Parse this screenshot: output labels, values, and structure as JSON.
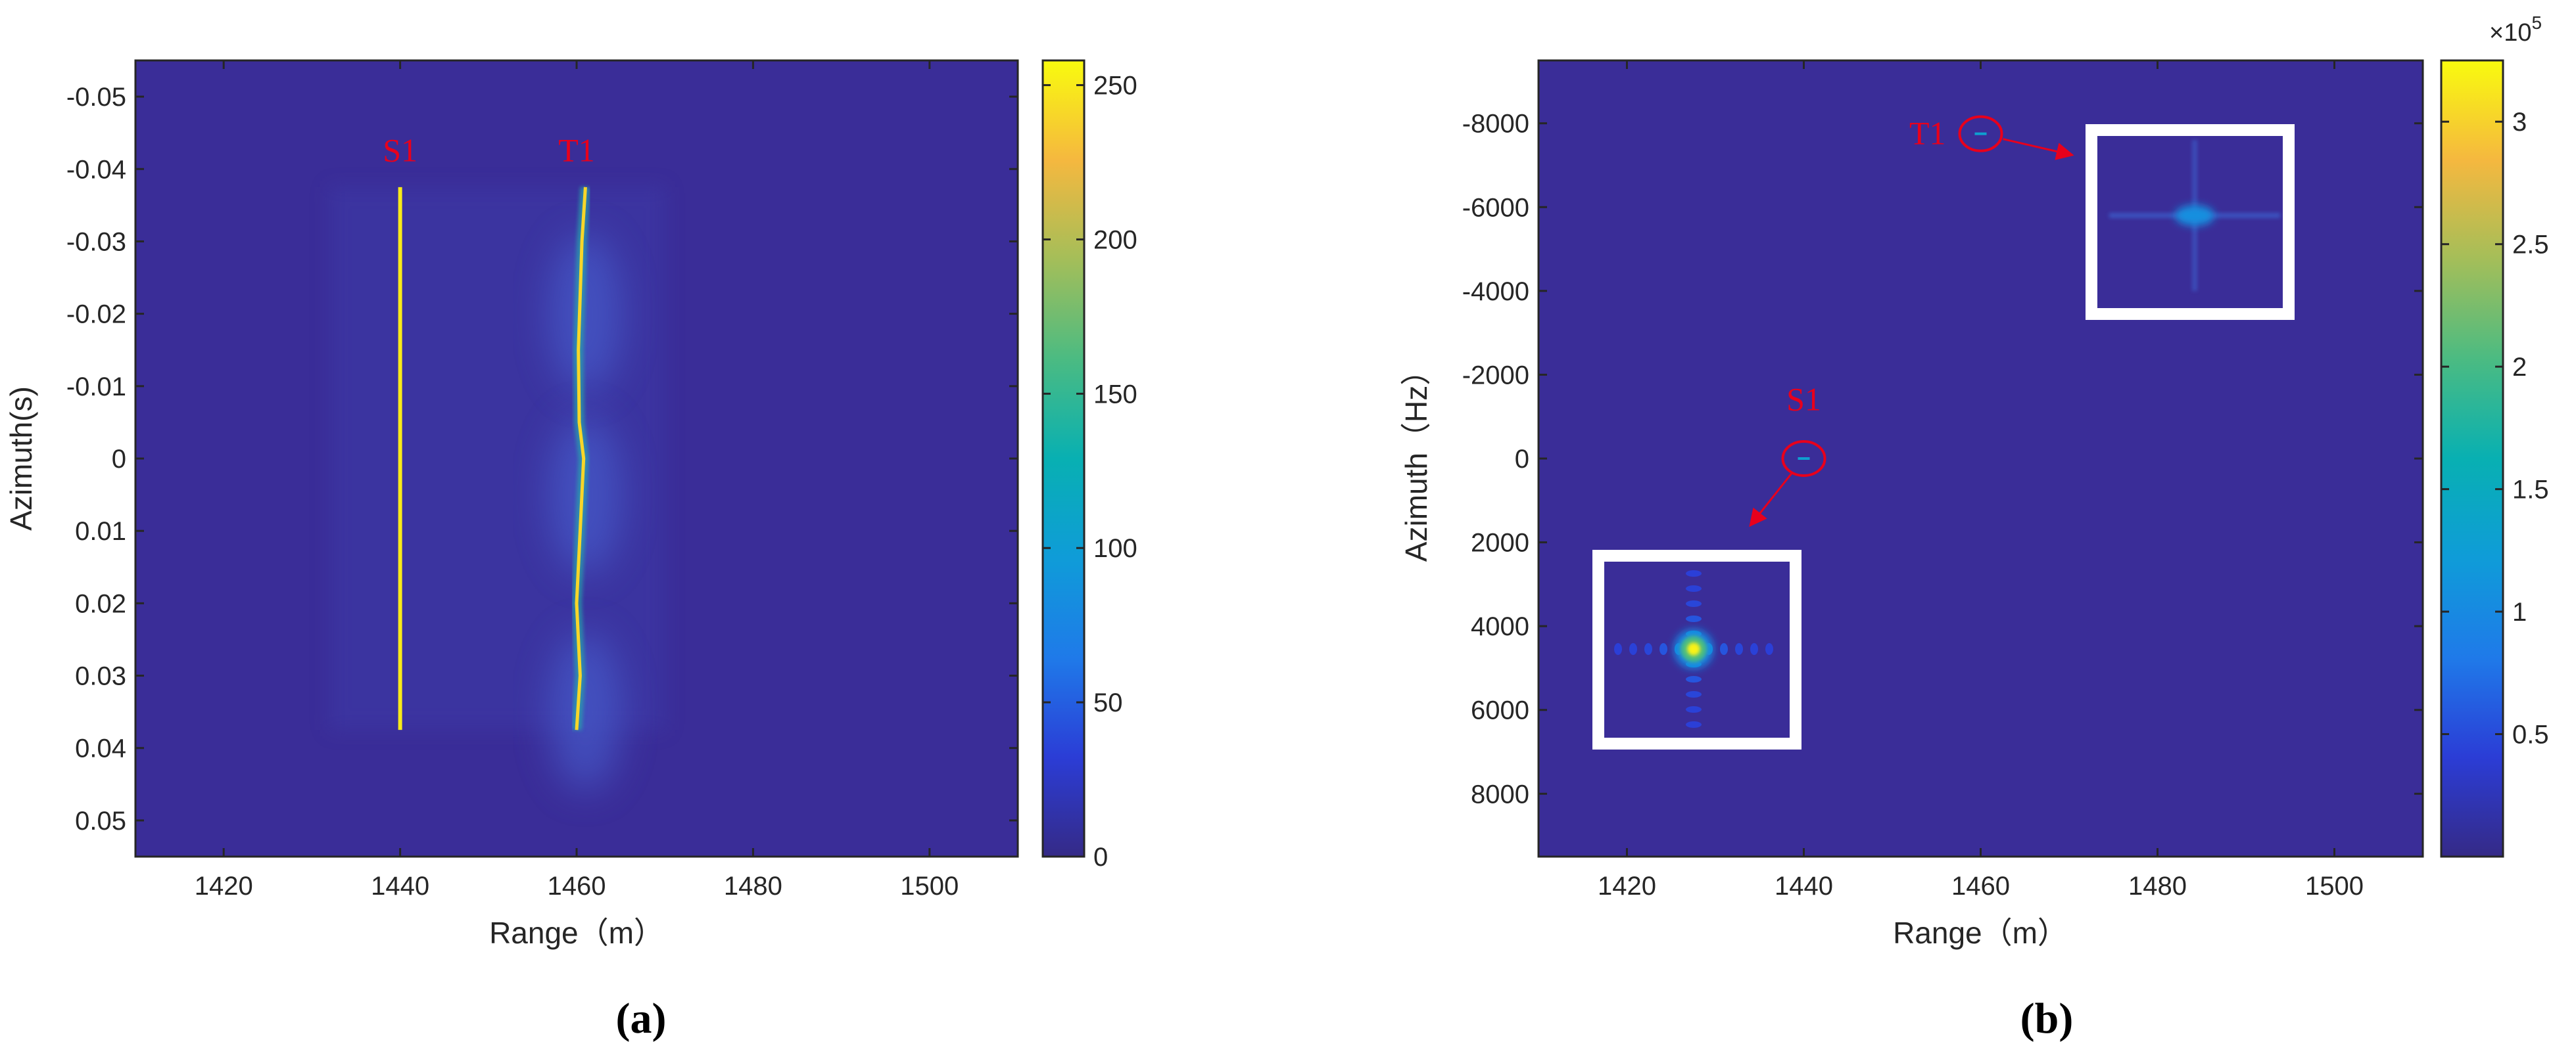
{
  "chart_data": [
    {
      "type": "heatmap",
      "panel_label": "(a)",
      "xlabel": "Range（m）",
      "ylabel": "Azimuth(s)",
      "xlim": [
        1410,
        1510
      ],
      "ylim": [
        -0.055,
        0.055
      ],
      "y_reversed": true,
      "xticks": [
        1420,
        1440,
        1460,
        1480,
        1500
      ],
      "yticks": [
        -0.05,
        -0.04,
        -0.03,
        -0.02,
        -0.01,
        0,
        0.01,
        0.02,
        0.03,
        0.04,
        0.05
      ],
      "ytick_labels": [
        "-0.05",
        "-0.04",
        "-0.03",
        "-0.02",
        "-0.01",
        "0",
        "0.01",
        "0.02",
        "0.03",
        "0.04",
        "0.05"
      ],
      "colormap": "parula",
      "colorbar": {
        "range": [
          0,
          258
        ],
        "ticks": [
          0,
          50,
          100,
          150,
          200,
          250
        ],
        "tick_labels": [
          "0",
          "50",
          "100",
          "150",
          "200",
          "250"
        ]
      },
      "background_value": 20,
      "features": [
        {
          "label": "S1",
          "kind": "vertical_line",
          "x": 1440,
          "y_range": [
            -0.0375,
            0.0375
          ],
          "peak": 250,
          "edge": 130
        },
        {
          "label": "T1",
          "kind": "curved_line",
          "y_range": [
            -0.0375,
            0.0375
          ],
          "path": [
            [
              1461,
              -0.0375
            ],
            [
              1460.6,
              -0.03
            ],
            [
              1460.2,
              -0.015
            ],
            [
              1460.3,
              -0.005
            ],
            [
              1460.8,
              0.0
            ],
            [
              1460.4,
              0.01
            ],
            [
              1460.0,
              0.02
            ],
            [
              1460.4,
              0.03
            ],
            [
              1460.0,
              0.0375
            ]
          ],
          "peak": 240,
          "halo_centers": [
            -0.02,
            0.005,
            0.035
          ]
        }
      ],
      "annotations": [
        {
          "text": "S1",
          "x": 1440,
          "y": -0.0425,
          "color": "#e8001c"
        },
        {
          "text": "T1",
          "x": 1460,
          "y": -0.0425,
          "color": "#e8001c"
        }
      ]
    },
    {
      "type": "heatmap",
      "panel_label": "(b)",
      "xlabel": "Range（m）",
      "ylabel": "Azimuth（Hz）",
      "xlim": [
        1410,
        1510
      ],
      "ylim": [
        -9500,
        9500
      ],
      "y_reversed": true,
      "xticks": [
        1420,
        1440,
        1460,
        1480,
        1500
      ],
      "yticks": [
        -8000,
        -6000,
        -4000,
        -2000,
        0,
        2000,
        4000,
        6000,
        8000
      ],
      "ytick_labels": [
        "-8000",
        "-6000",
        "-4000",
        "-2000",
        "0",
        "2000",
        "4000",
        "6000",
        "8000"
      ],
      "colormap": "parula",
      "colorbar": {
        "range": [
          0,
          3.25
        ],
        "ticks": [
          0.5,
          1,
          1.5,
          2,
          2.5,
          3
        ],
        "tick_labels": [
          "0.5",
          "1",
          "1.5",
          "2",
          "2.5",
          "3"
        ],
        "exponent_label": "×10",
        "exponent": "5"
      },
      "targets": [
        {
          "label": "T1",
          "x": 1460,
          "y": -7750,
          "peak": 0.9
        },
        {
          "label": "S1",
          "x": 1440,
          "y": 0,
          "peak": 3.2
        }
      ],
      "annotations": [
        {
          "text": "T1",
          "x": 1454,
          "y": -7750,
          "color": "#e8001c"
        },
        {
          "text": "S1",
          "x": 1440,
          "y": -1400,
          "color": "#e8001c"
        }
      ]
    }
  ]
}
